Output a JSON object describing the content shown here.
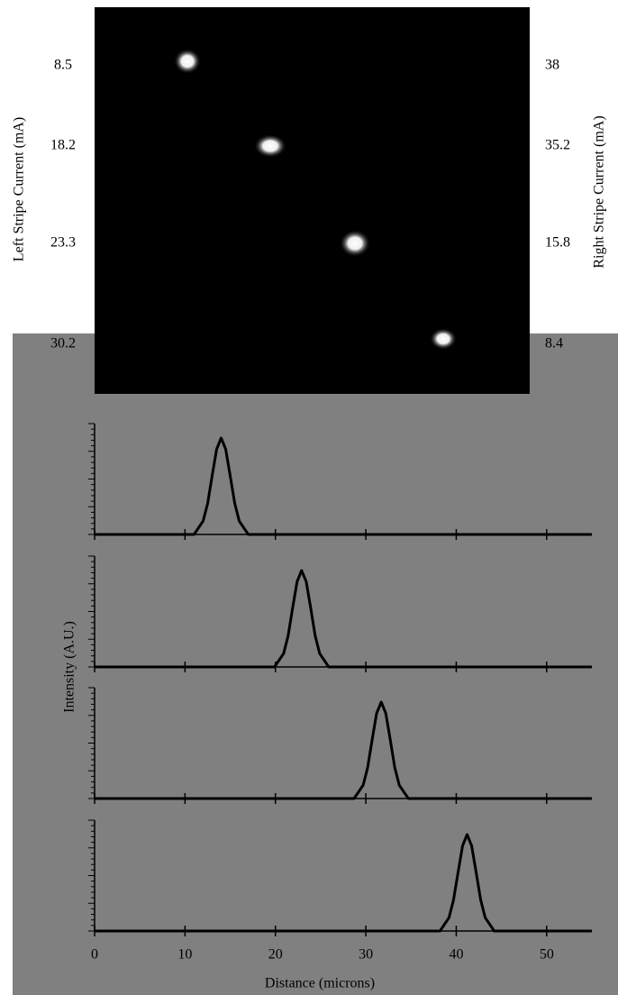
{
  "image": {
    "left_axis_label": "Left Stripe Current (mA)",
    "right_axis_label": "Right Stripe Current (mA)",
    "left_labels": [
      "8.5",
      "18.2",
      "23.3",
      "30.2"
    ],
    "right_labels": [
      "38",
      "35.2",
      "15.8",
      "8.4"
    ]
  },
  "chart_data": {
    "type": "line",
    "xlabel": "Distance (microns)",
    "ylabel": "Intensity (A.U.)",
    "xlim": [
      0,
      55
    ],
    "xticks": [
      0,
      10,
      20,
      30,
      40,
      50
    ],
    "ylim": [
      0,
      1
    ],
    "color": "#000000",
    "panels": [
      {
        "x": [
          0,
          11,
          12,
          12.5,
          13,
          13.5,
          14,
          14.5,
          15,
          15.5,
          16,
          17,
          55
        ],
        "values": [
          0,
          0,
          0.12,
          0.28,
          0.53,
          0.77,
          0.87,
          0.77,
          0.53,
          0.28,
          0.12,
          0,
          0
        ]
      },
      {
        "x": [
          0,
          19.9,
          20.9,
          21.4,
          21.9,
          22.4,
          22.9,
          23.4,
          23.9,
          24.4,
          24.9,
          25.9,
          55
        ],
        "values": [
          0,
          0,
          0.12,
          0.28,
          0.53,
          0.77,
          0.87,
          0.77,
          0.53,
          0.28,
          0.12,
          0,
          0
        ]
      },
      {
        "x": [
          0,
          28.7,
          29.7,
          30.2,
          30.7,
          31.2,
          31.7,
          32.2,
          32.7,
          33.2,
          33.7,
          34.7,
          55
        ],
        "values": [
          0,
          0,
          0.12,
          0.28,
          0.53,
          0.77,
          0.87,
          0.77,
          0.53,
          0.28,
          0.12,
          0,
          0
        ]
      },
      {
        "x": [
          0,
          38.2,
          39.2,
          39.7,
          40.2,
          40.7,
          41.2,
          41.7,
          42.2,
          42.7,
          43.2,
          44.2,
          55
        ],
        "values": [
          0,
          0,
          0.12,
          0.28,
          0.53,
          0.77,
          0.87,
          0.77,
          0.53,
          0.28,
          0.12,
          0,
          0
        ]
      }
    ]
  }
}
